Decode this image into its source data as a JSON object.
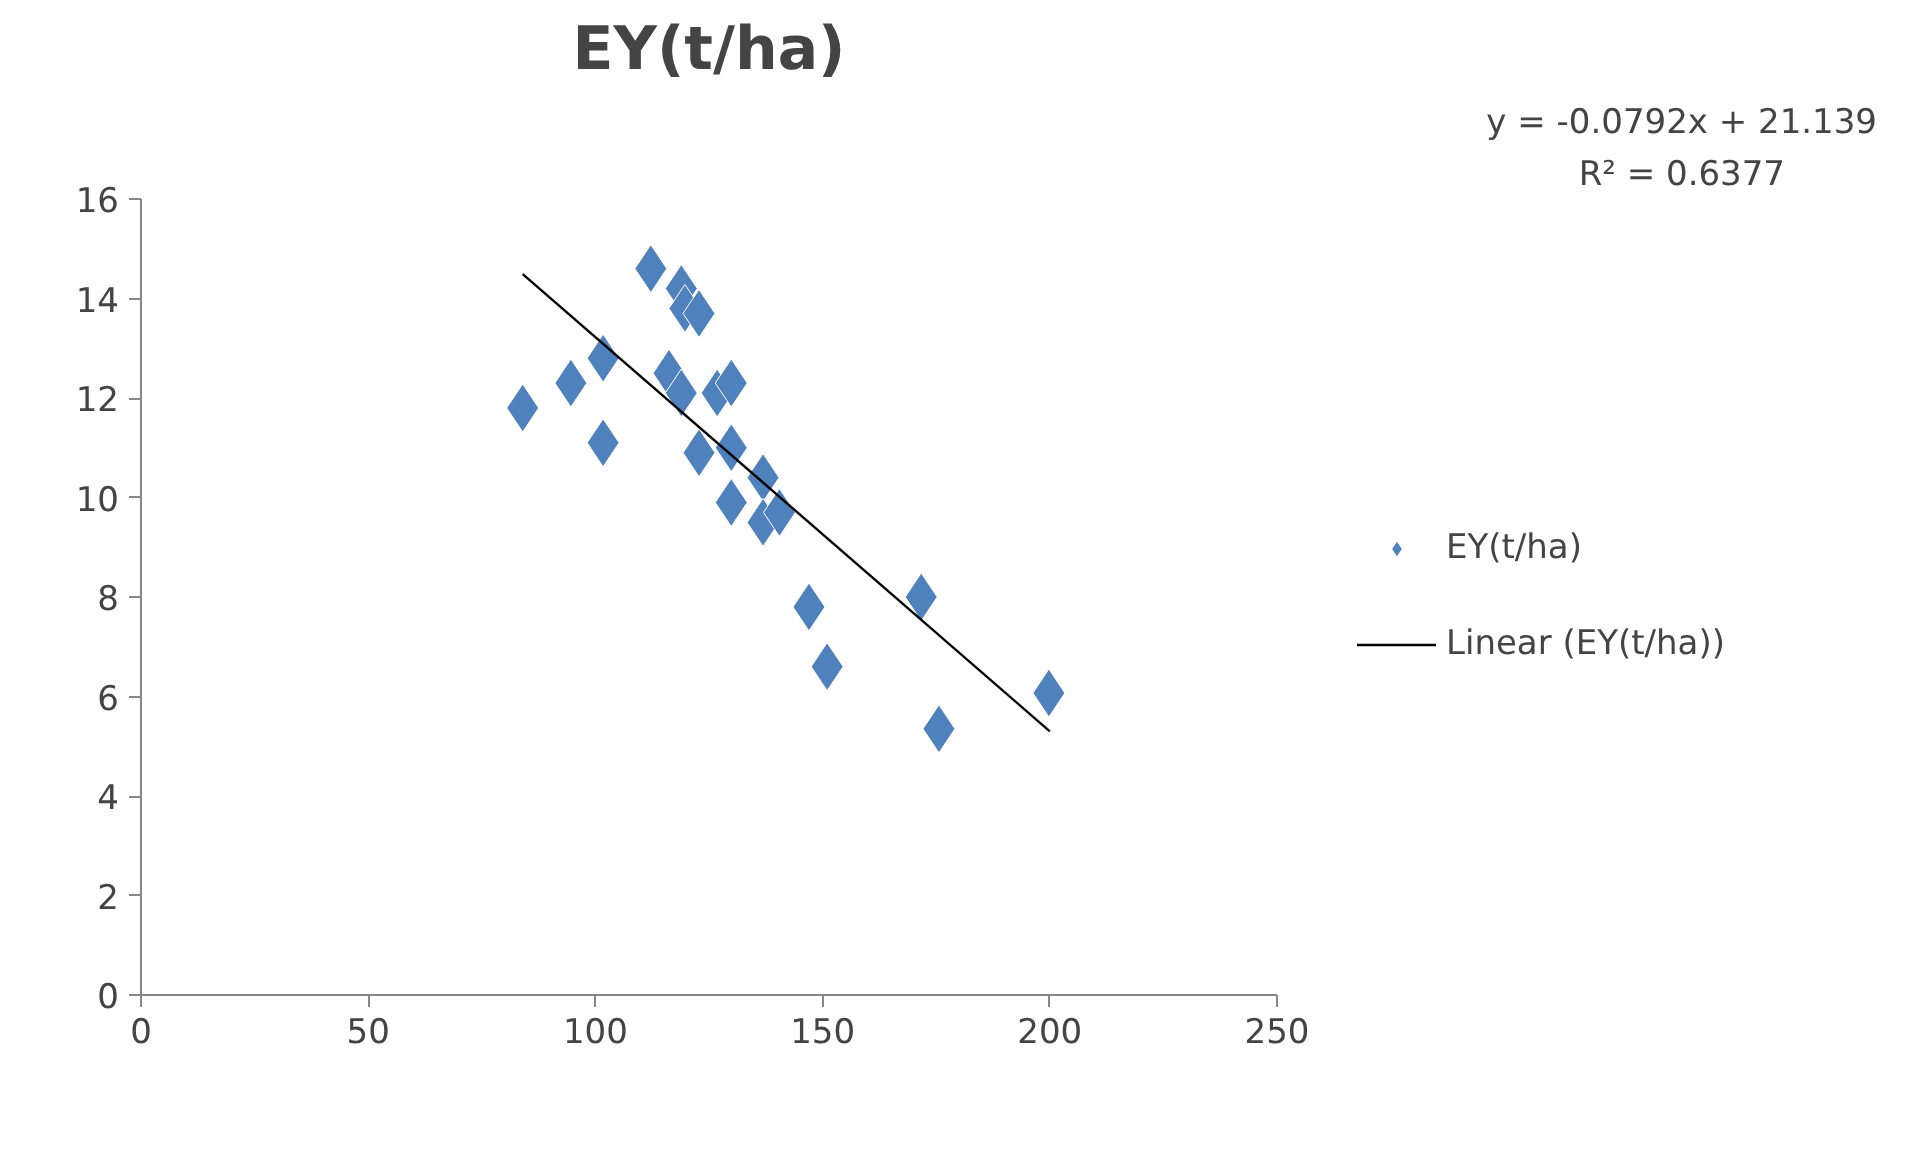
{
  "chart_data": {
    "type": "scatter",
    "title": "EY(t/ha)",
    "grid": false,
    "legend": "right",
    "xlim": [
      0,
      250
    ],
    "xticks": [
      0,
      50,
      100,
      150,
      200,
      250
    ],
    "ylim": [
      0,
      16
    ],
    "yticks": [
      0,
      2,
      4,
      6,
      8,
      10,
      12,
      14,
      16
    ],
    "series": [
      {
        "name": "EY(t/ha)",
        "color": "#4f81bd",
        "marker": "diamond",
        "x": [
          84,
          94.6,
          101.7,
          101.7,
          112.2,
          118.9,
          119.7,
          122.8,
          116.2,
          118.9,
          122.8,
          126.8,
          129.9,
          129.9,
          129.9,
          136.9,
          136.9,
          140.5,
          147,
          151,
          171.7,
          175.6,
          199.8
        ],
        "values": [
          11.8,
          12.3,
          12.8,
          11.1,
          14.6,
          14.2,
          13.8,
          13.7,
          12.5,
          12.1,
          10.9,
          12.1,
          12.3,
          11.0,
          9.9,
          10.4,
          9.5,
          9.7,
          7.8,
          6.6,
          8.0,
          5.35,
          6.07
        ]
      },
      {
        "name": "Linear (EY(t/ha))",
        "type": "line",
        "color": "#000000",
        "marker": "none",
        "x": [
          84,
          200
        ],
        "values": [
          14.49,
          5.3
        ]
      }
    ],
    "annotations": [
      "y = -0.0792x + 21.139",
      "R² = 0.6377"
    ]
  }
}
